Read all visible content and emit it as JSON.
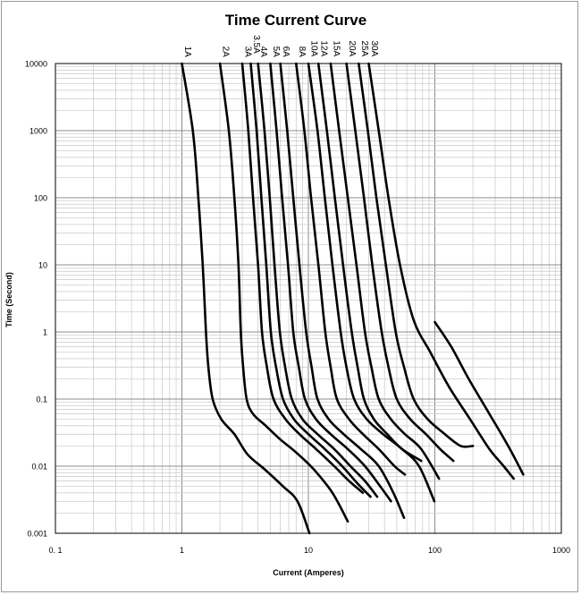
{
  "chart_data": {
    "type": "line",
    "title": "Time Current Curve",
    "xlabel": "Current  (Amperes)",
    "ylabel": "Time (Second)",
    "xscale": "log",
    "yscale": "log",
    "xlim": [
      0.1,
      1000
    ],
    "ylim": [
      0.001,
      10000
    ],
    "x_tick_labels": [
      "0. 1",
      "1",
      "10",
      "100",
      "1000"
    ],
    "y_tick_labels": [
      "10000",
      "1000",
      "100",
      "10",
      "1",
      "0.1",
      "0.01",
      "0.001"
    ],
    "grid": true,
    "legend": "none",
    "series": [
      {
        "name": "1A",
        "points": [
          [
            1.0,
            10000
          ],
          [
            1.22,
            1000
          ],
          [
            1.35,
            100
          ],
          [
            1.46,
            10
          ],
          [
            1.55,
            1
          ],
          [
            1.62,
            0.3
          ],
          [
            1.75,
            0.1
          ],
          [
            2.05,
            0.05
          ],
          [
            2.6,
            0.03
          ],
          [
            3.3,
            0.015
          ],
          [
            4.5,
            0.009
          ],
          [
            6.3,
            0.005
          ],
          [
            8.2,
            0.003
          ],
          [
            10.2,
            0.001
          ]
        ]
      },
      {
        "name": "2A",
        "points": [
          [
            2.0,
            10000
          ],
          [
            2.35,
            1000
          ],
          [
            2.6,
            100
          ],
          [
            2.8,
            10
          ],
          [
            2.92,
            1
          ],
          [
            3.05,
            0.3
          ],
          [
            3.25,
            0.1
          ],
          [
            3.65,
            0.06
          ],
          [
            4.6,
            0.04
          ],
          [
            6.0,
            0.025
          ],
          [
            8.0,
            0.016
          ],
          [
            11.0,
            0.009
          ],
          [
            15.5,
            0.004
          ],
          [
            20.5,
            0.0015
          ]
        ]
      },
      {
        "name": "3A",
        "points": [
          [
            3.0,
            10000
          ],
          [
            3.35,
            1000
          ],
          [
            3.65,
            100
          ],
          [
            4.0,
            10
          ],
          [
            4.3,
            1
          ],
          [
            4.7,
            0.3
          ],
          [
            5.3,
            0.1
          ],
          [
            6.6,
            0.05
          ],
          [
            8.5,
            0.03
          ],
          [
            11.5,
            0.018
          ],
          [
            16.0,
            0.01
          ],
          [
            21.0,
            0.006
          ],
          [
            27.0,
            0.004
          ]
        ]
      },
      {
        "name": "3.5A",
        "points": [
          [
            3.5,
            10000
          ],
          [
            3.9,
            1000
          ],
          [
            4.25,
            100
          ],
          [
            4.65,
            10
          ],
          [
            5.05,
            1
          ],
          [
            5.55,
            0.3
          ],
          [
            6.3,
            0.1
          ],
          [
            7.7,
            0.05
          ],
          [
            10.0,
            0.03
          ],
          [
            13.5,
            0.018
          ],
          [
            18.5,
            0.01
          ],
          [
            24.5,
            0.0055
          ],
          [
            31.0,
            0.0035
          ]
        ]
      },
      {
        "name": "4A",
        "points": [
          [
            4.0,
            10000
          ],
          [
            4.5,
            1000
          ],
          [
            4.95,
            100
          ],
          [
            5.4,
            10
          ],
          [
            5.95,
            1
          ],
          [
            6.55,
            0.3
          ],
          [
            7.4,
            0.1
          ],
          [
            9.0,
            0.05
          ],
          [
            11.8,
            0.03
          ],
          [
            16.0,
            0.018
          ],
          [
            21.5,
            0.01
          ],
          [
            28.0,
            0.006
          ],
          [
            35.0,
            0.0035
          ]
        ]
      },
      {
        "name": "5A",
        "points": [
          [
            5.0,
            10000
          ],
          [
            5.6,
            1000
          ],
          [
            6.2,
            100
          ],
          [
            6.9,
            10
          ],
          [
            7.6,
            1
          ],
          [
            8.4,
            0.3
          ],
          [
            9.4,
            0.1
          ],
          [
            11.5,
            0.05
          ],
          [
            15.0,
            0.03
          ],
          [
            20.5,
            0.018
          ],
          [
            28.0,
            0.01
          ],
          [
            37.0,
            0.005
          ],
          [
            45.0,
            0.003
          ]
        ]
      },
      {
        "name": "6A",
        "points": [
          [
            6.0,
            10000
          ],
          [
            6.8,
            1000
          ],
          [
            7.6,
            100
          ],
          [
            8.5,
            10
          ],
          [
            9.6,
            1
          ],
          [
            10.6,
            0.3
          ],
          [
            11.8,
            0.1
          ],
          [
            14.5,
            0.05
          ],
          [
            19.0,
            0.03
          ],
          [
            26.0,
            0.018
          ],
          [
            36.0,
            0.01
          ],
          [
            47.0,
            0.004
          ],
          [
            57.0,
            0.0017
          ]
        ]
      },
      {
        "name": "8A",
        "points": [
          [
            8.0,
            10000
          ],
          [
            9.3,
            1000
          ],
          [
            10.5,
            100
          ],
          [
            12.0,
            10
          ],
          [
            13.6,
            1
          ],
          [
            15.0,
            0.3
          ],
          [
            16.8,
            0.1
          ],
          [
            21.0,
            0.05
          ],
          [
            27.0,
            0.03
          ],
          [
            36.0,
            0.018
          ],
          [
            48.0,
            0.01
          ],
          [
            58.0,
            0.0075
          ]
        ]
      },
      {
        "name": "10A",
        "points": [
          [
            10.0,
            10000
          ],
          [
            11.8,
            1000
          ],
          [
            13.5,
            100
          ],
          [
            15.5,
            10
          ],
          [
            18.0,
            1
          ],
          [
            20.0,
            0.3
          ],
          [
            23.0,
            0.1
          ],
          [
            29.0,
            0.05
          ],
          [
            39.0,
            0.03
          ],
          [
            55.0,
            0.018
          ],
          [
            75.0,
            0.01
          ],
          [
            99.0,
            0.003
          ]
        ]
      },
      {
        "name": "12A",
        "points": [
          [
            12.0,
            10000
          ],
          [
            14.0,
            1000
          ],
          [
            16.2,
            100
          ],
          [
            18.8,
            10
          ],
          [
            22.0,
            1
          ],
          [
            24.5,
            0.3
          ],
          [
            27.5,
            0.1
          ],
          [
            33.0,
            0.05
          ],
          [
            42.0,
            0.03
          ],
          [
            55.0,
            0.018
          ],
          [
            78.0,
            0.012
          ]
        ]
      },
      {
        "name": "15A",
        "points": [
          [
            15.0,
            10000
          ],
          [
            17.5,
            1000
          ],
          [
            20.5,
            100
          ],
          [
            24.0,
            10
          ],
          [
            28.0,
            1
          ],
          [
            31.5,
            0.3
          ],
          [
            36.0,
            0.1
          ],
          [
            45.0,
            0.05
          ],
          [
            58.0,
            0.03
          ],
          [
            78.0,
            0.018
          ],
          [
            108.0,
            0.0065
          ]
        ]
      },
      {
        "name": "20A",
        "points": [
          [
            20.0,
            10000
          ],
          [
            23.5,
            1000
          ],
          [
            27.5,
            100
          ],
          [
            32.0,
            10
          ],
          [
            38.0,
            1
          ],
          [
            43.0,
            0.3
          ],
          [
            50.0,
            0.1
          ],
          [
            64.0,
            0.05
          ],
          [
            85.0,
            0.03
          ],
          [
            110.0,
            0.018
          ],
          [
            140.0,
            0.012
          ]
        ]
      },
      {
        "name": "25A",
        "points": [
          [
            25.0,
            10000
          ],
          [
            29.5,
            1000
          ],
          [
            34.5,
            100
          ],
          [
            41.0,
            10
          ],
          [
            49.0,
            1
          ],
          [
            57.0,
            0.3
          ],
          [
            68.0,
            0.1
          ],
          [
            88.0,
            0.05
          ],
          [
            120.0,
            0.03
          ],
          [
            160.0,
            0.02
          ],
          [
            200.0,
            0.02
          ]
        ]
      },
      {
        "name": "30A",
        "points": [
          [
            30.0,
            10000
          ],
          [
            36.0,
            1000
          ],
          [
            43.0,
            100
          ],
          [
            53.0,
            10
          ],
          [
            68.0,
            1.5
          ],
          [
            92.0,
            0.5
          ],
          [
            130.0,
            0.15
          ],
          [
            190.0,
            0.05
          ],
          [
            270.0,
            0.018
          ],
          [
            350.0,
            0.01
          ],
          [
            420.0,
            0.0065
          ]
        ]
      },
      {
        "name": "",
        "points": [
          [
            100.0,
            1.4
          ],
          [
            135.0,
            0.6
          ],
          [
            185.0,
            0.2
          ],
          [
            270.0,
            0.06
          ],
          [
            380.0,
            0.02
          ],
          [
            500.0,
            0.0075
          ]
        ]
      }
    ]
  }
}
